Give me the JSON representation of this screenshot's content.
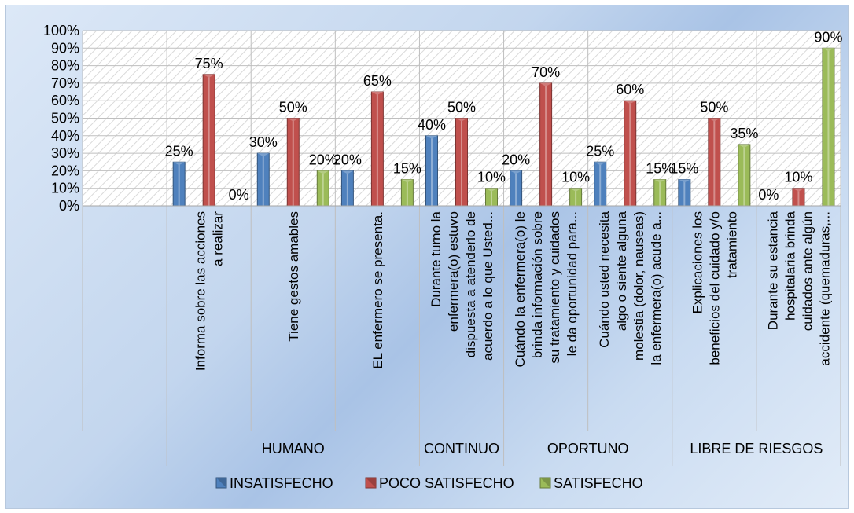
{
  "chart_data": {
    "type": "bar",
    "groups": [
      {
        "label": "",
        "categories": [
          ""
        ]
      },
      {
        "label": "HUMANO",
        "categories": [
          "Informa sobre las acciones a realizar",
          "Tiene gestos amables",
          "EL enfermero se presenta."
        ]
      },
      {
        "label": "CONTINUO",
        "categories": [
          "Durante turno la enfermera(o) estuvo dispuesta a atenderlo de acuerdo a lo que Usted..."
        ]
      },
      {
        "label": "OPORTUNO",
        "categories": [
          "Cuándo la enfermera(o) le brinda información sobre su tratamiento y cuidados le da oportunidad para...",
          "Cuándo usted necesita algo o siente alguna molestia (dolor, nauseas) la enfermera(o) acude a..."
        ]
      },
      {
        "label": "LIBRE DE RIESGOS",
        "categories": [
          "Explicaciones los beneficios del cuidado y/o tratamiento",
          "Durante su estancia hospitalaria brinda cuidados ante algún accidente (quemaduras,..."
        ]
      }
    ],
    "category_lines": [
      [
        ""
      ],
      [
        "Informa sobre las acciones",
        "a realizar"
      ],
      [
        "Tiene gestos amables"
      ],
      [
        "EL enfermero se presenta."
      ],
      [
        "Durante turno la",
        "enfermera(o) estuvo",
        "dispuesta a atenderlo de",
        "acuerdo a lo que Usted..."
      ],
      [
        "Cuándo la enfermera(o) le",
        "brinda información sobre",
        "su tratamiento y cuidados",
        "le da oportunidad para..."
      ],
      [
        "Cuándo usted necesita",
        "algo o siente alguna",
        "molestia (dolor, nauseas)",
        "la enfermera(o) acude a..."
      ],
      [
        "Explicaciones los",
        "beneficios del cuidado y/o",
        "tratamiento"
      ],
      [
        "Durante su estancia",
        "hospitalaria brinda",
        "cuidados ante algún",
        "accidente (quemaduras,..."
      ]
    ],
    "series": [
      {
        "name": "INSATISFECHO",
        "color": "#4f81bd",
        "values": [
          null,
          25,
          30,
          20,
          40,
          20,
          25,
          15,
          0
        ]
      },
      {
        "name": "POCO SATISFECHO",
        "color": "#c0504d",
        "values": [
          null,
          75,
          50,
          65,
          50,
          70,
          60,
          50,
          10
        ]
      },
      {
        "name": "SATISFECHO",
        "color": "#9bbb59",
        "values": [
          null,
          0,
          20,
          15,
          10,
          10,
          15,
          35,
          90
        ]
      }
    ],
    "data_labels": [
      [
        null,
        "25%",
        "30%",
        "20%",
        "40%",
        "20%",
        "25%",
        "15%",
        "0%"
      ],
      [
        null,
        "75%",
        "50%",
        "65%",
        "50%",
        "70%",
        "60%",
        "50%",
        "10%"
      ],
      [
        null,
        "0%",
        "20%",
        "15%",
        "10%",
        "10%",
        "15%",
        "35%",
        "90%"
      ]
    ],
    "y_ticks": [
      "0%",
      "10%",
      "20%",
      "30%",
      "40%",
      "50%",
      "60%",
      "70%",
      "80%",
      "90%",
      "100%"
    ],
    "ylim": [
      0,
      100
    ],
    "grid": true,
    "legend": "bottom",
    "title": "",
    "xlabel": "",
    "ylabel": ""
  }
}
